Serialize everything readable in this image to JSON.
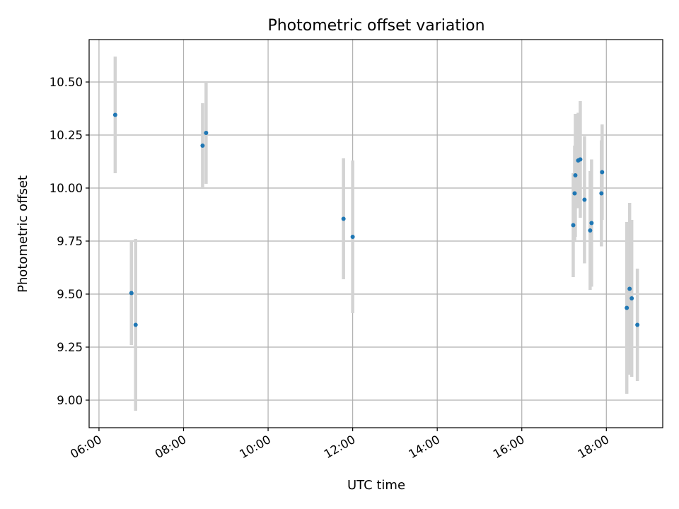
{
  "chart_data": {
    "type": "scatter",
    "title": "Photometric offset variation",
    "xlabel": "UTC time",
    "ylabel": "Photometric offset",
    "x_is_time": true,
    "xlim": [
      "05:46",
      "19:20"
    ],
    "ylim": [
      8.87,
      10.7
    ],
    "xticks": [
      "06:00",
      "08:00",
      "10:00",
      "12:00",
      "14:00",
      "16:00",
      "18:00"
    ],
    "yticks": [
      "9.00",
      "9.25",
      "9.50",
      "9.75",
      "10.00",
      "10.25",
      "10.50"
    ],
    "grid": true,
    "legend": false,
    "colors": {
      "point": "#1f77b4",
      "errorbar": "#d3d3d3",
      "grid": "#b0b0b0"
    },
    "points": [
      {
        "x": "06:23",
        "y": 10.345,
        "yerr": 0.275
      },
      {
        "x": "06:46",
        "y": 9.505,
        "yerr": 0.245
      },
      {
        "x": "06:52",
        "y": 9.355,
        "yerr": 0.405
      },
      {
        "x": "08:27",
        "y": 10.2,
        "yerr": 0.2
      },
      {
        "x": "08:32",
        "y": 10.26,
        "yerr": 0.24
      },
      {
        "x": "11:47",
        "y": 9.855,
        "yerr": 0.285
      },
      {
        "x": "12:00",
        "y": 9.77,
        "yerr": 0.36
      },
      {
        "x": "17:13",
        "y": 9.825,
        "yerr": 0.245
      },
      {
        "x": "17:15",
        "y": 9.975,
        "yerr": 0.225
      },
      {
        "x": "17:16",
        "y": 10.06,
        "yerr": 0.29
      },
      {
        "x": "17:20",
        "y": 10.13,
        "yerr": 0.225
      },
      {
        "x": "17:23",
        "y": 10.135,
        "yerr": 0.275
      },
      {
        "x": "17:29",
        "y": 9.945,
        "yerr": 0.3
      },
      {
        "x": "17:37",
        "y": 9.8,
        "yerr": 0.28
      },
      {
        "x": "17:39",
        "y": 9.835,
        "yerr": 0.3
      },
      {
        "x": "17:53",
        "y": 9.975,
        "yerr": 0.25
      },
      {
        "x": "17:54",
        "y": 10.075,
        "yerr": 0.225
      },
      {
        "x": "18:29",
        "y": 9.435,
        "yerr": 0.405
      },
      {
        "x": "18:33",
        "y": 9.525,
        "yerr": 0.405
      },
      {
        "x": "18:36",
        "y": 9.48,
        "yerr": 0.37
      },
      {
        "x": "18:44",
        "y": 9.355,
        "yerr": 0.265
      }
    ]
  }
}
